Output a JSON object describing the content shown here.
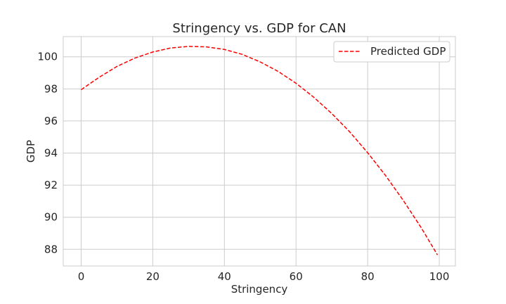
{
  "chart_data": {
    "type": "line",
    "title": "Stringency vs. GDP for CAN",
    "xlabel": "Stringency",
    "ylabel": "GDP",
    "xlim": [
      -5,
      104.5
    ],
    "ylim": [
      86.96,
      101.26
    ],
    "xticks": [
      0,
      20,
      40,
      60,
      80,
      100
    ],
    "yticks": [
      88,
      90,
      92,
      94,
      96,
      98,
      100
    ],
    "grid": true,
    "legend_position": "top-right",
    "series": [
      {
        "name": "Predicted GDP",
        "color": "#ff0000",
        "line_style": "dashed",
        "x": [
          0,
          5,
          10,
          15,
          20,
          25,
          30,
          35,
          40,
          45,
          50,
          55,
          60,
          65,
          70,
          75,
          80,
          85,
          90,
          95,
          99.5
        ],
        "y": [
          97.95,
          98.72,
          99.4,
          99.92,
          100.3,
          100.55,
          100.65,
          100.62,
          100.46,
          100.15,
          99.68,
          99.09,
          98.35,
          97.47,
          96.46,
          95.32,
          94.02,
          92.6,
          91.03,
          89.33,
          87.65
        ]
      }
    ]
  }
}
